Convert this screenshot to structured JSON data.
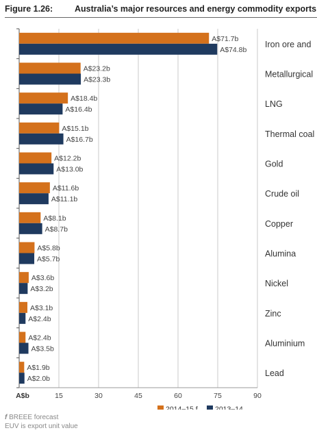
{
  "figure": {
    "number": "Figure 1.26:",
    "title": "Australia’s major resources and energy commodity exports"
  },
  "footnotes": {
    "f_marker": "f",
    "f_text": "BREEE forecast",
    "euv": "EUV is export unit value"
  },
  "colors": {
    "series_2014_15": "#d4711c",
    "series_2013_14": "#1f3a5f",
    "grid": "#c9c9c9",
    "category_label": "#333333",
    "value_label": "#444444"
  },
  "chart_data": {
    "type": "bar",
    "orientation": "horizontal",
    "xlabel": "A$b",
    "xlim": [
      0,
      90
    ],
    "xticks": [
      15,
      30,
      45,
      60,
      75,
      90
    ],
    "grid": "vertical",
    "legend_position": "bottom-right",
    "categories": [
      "Iron ore and",
      "Metallurgical",
      "LNG",
      "Thermal coal",
      "Gold",
      "Crude oil",
      "Copper",
      "Alumina",
      "Nickel",
      "Zinc",
      "Aluminium",
      "Lead"
    ],
    "series": [
      {
        "name": "2014–15  f",
        "values": [
          71.7,
          23.2,
          18.4,
          15.1,
          12.2,
          11.6,
          8.1,
          5.8,
          3.6,
          3.1,
          2.4,
          1.9
        ],
        "labels": [
          "A$71.7b",
          "A$23.2b",
          "A$18.4b",
          "A$15.1b",
          "A$12.2b",
          "A$11.6b",
          "A$8.1b",
          "A$5.8b",
          "A$3.6b",
          "A$3.1b",
          "A$2.4b",
          "A$1.9b"
        ]
      },
      {
        "name": "2013–14",
        "values": [
          74.8,
          23.3,
          16.4,
          16.7,
          13.0,
          11.1,
          8.7,
          5.7,
          3.2,
          2.4,
          3.5,
          2.0
        ],
        "labels": [
          "A$74.8b",
          "A$23.3b",
          "A$16.4b",
          "A$16.7b",
          "A$13.0b",
          "A$11.1b",
          "A$8.7b",
          "A$5.7b",
          "A$3.2b",
          "A$2.4b",
          "A$3.5b",
          "A$2.0b"
        ]
      }
    ]
  }
}
